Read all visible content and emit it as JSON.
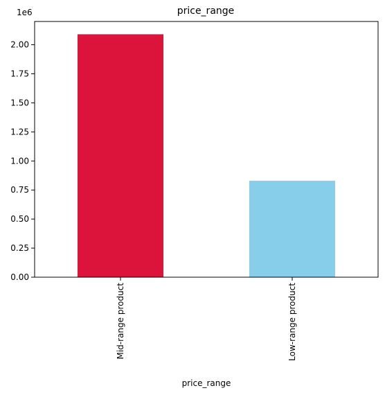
{
  "chart_data": {
    "type": "bar",
    "title": "price_range",
    "xlabel": "price_range",
    "ylabel": "",
    "categories": [
      "Mid-range product",
      "Low-range product"
    ],
    "values": [
      2090000,
      830000
    ],
    "colors": [
      "#DC143C",
      "#87CEEB"
    ],
    "ylim": [
      0,
      2200000
    ],
    "yticks": [
      0,
      250000,
      500000,
      750000,
      1000000,
      1250000,
      1500000,
      1750000,
      2000000
    ],
    "ytick_labels": [
      "0.00",
      "0.25",
      "0.50",
      "0.75",
      "1.00",
      "1.25",
      "1.50",
      "1.75",
      "2.00"
    ],
    "y_offset_label": "1e6",
    "grid": false,
    "legend": "none"
  }
}
